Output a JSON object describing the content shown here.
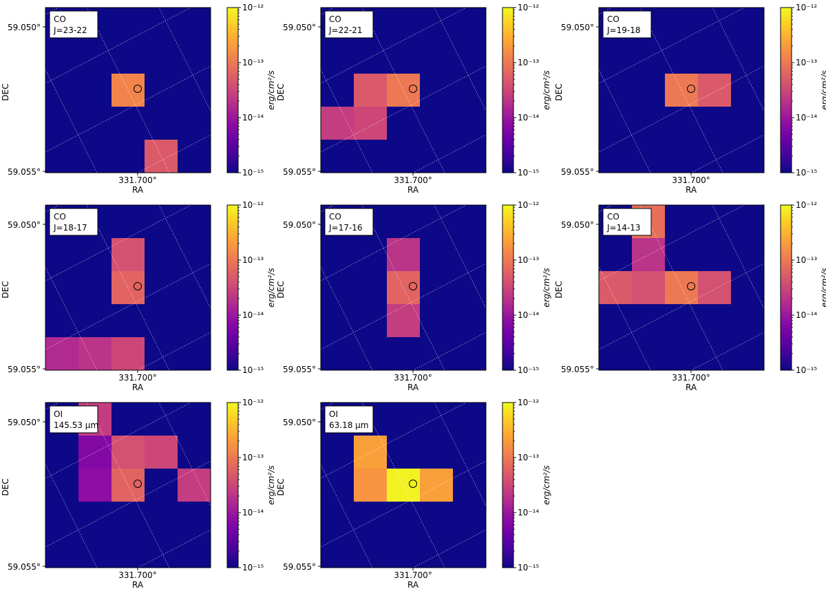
{
  "figure": {
    "colorbar_label": "erg/cm²/s",
    "colorbar_ticks": [
      "10⁻¹²",
      "10⁻¹³",
      "10⁻¹⁴",
      "10⁻¹⁵"
    ],
    "colormap": "plasma",
    "colors": {
      "background": "#0d0887",
      "marker": "#000000",
      "grid": "#ffffff"
    }
  },
  "chart_data": [
    {
      "type": "heatmap",
      "title_line1": "CO",
      "title_line2": "J=23-22",
      "xlabel": "RA",
      "ylabel": "DEC",
      "xtick": "331.700°",
      "yticks": [
        "59.050°",
        "59.055°"
      ],
      "clim_log10": [
        -15,
        -12
      ],
      "background_log10": -15,
      "cells": [
        {
          "col": 2,
          "row": 2,
          "log10_flux": -12.9
        },
        {
          "col": 3,
          "row": 4,
          "log10_flux": -13.3
        }
      ]
    },
    {
      "type": "heatmap",
      "title_line1": "CO",
      "title_line2": "J=22-21",
      "xlabel": "RA",
      "ylabel": "DEC",
      "xtick": "331.700°",
      "yticks": [
        "59.050°",
        "59.055°"
      ],
      "clim_log10": [
        -15,
        -12
      ],
      "background_log10": -15,
      "cells": [
        {
          "col": 1,
          "row": 2,
          "log10_flux": -13.3
        },
        {
          "col": 2,
          "row": 2,
          "log10_flux": -13.0
        },
        {
          "col": 0,
          "row": 3,
          "log10_flux": -13.6
        },
        {
          "col": 1,
          "row": 3,
          "log10_flux": -13.5
        }
      ]
    },
    {
      "type": "heatmap",
      "title_line1": "CO",
      "title_line2": "J=19-18",
      "xlabel": "RA",
      "ylabel": "DEC",
      "xtick": "331.700°",
      "yticks": [
        "59.050°",
        "59.055°"
      ],
      "clim_log10": [
        -15,
        -12
      ],
      "background_log10": -15,
      "cells": [
        {
          "col": 2,
          "row": 2,
          "log10_flux": -13.0
        },
        {
          "col": 3,
          "row": 2,
          "log10_flux": -13.3
        }
      ]
    },
    {
      "type": "heatmap",
      "title_line1": "CO",
      "title_line2": "J=18-17",
      "xlabel": "RA",
      "ylabel": "DEC",
      "xtick": "331.700°",
      "yticks": [
        "59.050°",
        "59.055°"
      ],
      "clim_log10": [
        -15,
        -12
      ],
      "background_log10": -15,
      "cells": [
        {
          "col": 2,
          "row": 1,
          "log10_flux": -13.4
        },
        {
          "col": 2,
          "row": 2,
          "log10_flux": -13.2
        },
        {
          "col": 0,
          "row": 4,
          "log10_flux": -13.8
        },
        {
          "col": 1,
          "row": 4,
          "log10_flux": -13.7
        },
        {
          "col": 2,
          "row": 4,
          "log10_flux": -13.5
        }
      ]
    },
    {
      "type": "heatmap",
      "title_line1": "CO",
      "title_line2": "J=17-16",
      "xlabel": "RA",
      "ylabel": "DEC",
      "xtick": "331.700°",
      "yticks": [
        "59.050°",
        "59.055°"
      ],
      "clim_log10": [
        -15,
        -12
      ],
      "background_log10": -15,
      "cells": [
        {
          "col": 2,
          "row": 1,
          "log10_flux": -13.7
        },
        {
          "col": 2,
          "row": 2,
          "log10_flux": -13.2
        },
        {
          "col": 2,
          "row": 3,
          "log10_flux": -13.6
        }
      ]
    },
    {
      "type": "heatmap",
      "title_line1": "CO",
      "title_line2": "J=14-13",
      "xlabel": "RA",
      "ylabel": "DEC",
      "xtick": "331.700°",
      "yticks": [
        "59.050°",
        "59.055°"
      ],
      "clim_log10": [
        -15,
        -12
      ],
      "background_log10": -15,
      "cells": [
        {
          "col": 1,
          "row": 0,
          "log10_flux": -13.1
        },
        {
          "col": 1,
          "row": 1,
          "log10_flux": -13.7
        },
        {
          "col": 0,
          "row": 2,
          "log10_flux": -13.3
        },
        {
          "col": 1,
          "row": 2,
          "log10_flux": -13.4
        },
        {
          "col": 2,
          "row": 2,
          "log10_flux": -13.0
        },
        {
          "col": 3,
          "row": 2,
          "log10_flux": -13.4
        }
      ]
    },
    {
      "type": "heatmap",
      "title_line1": "OI",
      "title_line2": "145.53 μm",
      "xlabel": "RA",
      "ylabel": "DEC",
      "xtick": "331.700°",
      "yticks": [
        "59.050°",
        "59.055°"
      ],
      "clim_log10": [
        -15,
        -12
      ],
      "background_log10": -15,
      "cells": [
        {
          "col": 1,
          "row": 0,
          "log10_flux": -13.6
        },
        {
          "col": 1,
          "row": 1,
          "log10_flux": -14.2
        },
        {
          "col": 2,
          "row": 1,
          "log10_flux": -13.4
        },
        {
          "col": 3,
          "row": 1,
          "log10_flux": -13.5
        },
        {
          "col": 1,
          "row": 2,
          "log10_flux": -14.1
        },
        {
          "col": 2,
          "row": 2,
          "log10_flux": -13.2
        },
        {
          "col": 4,
          "row": 2,
          "log10_flux": -13.6
        }
      ]
    },
    {
      "type": "heatmap",
      "title_line1": "OI",
      "title_line2": "63.18 μm",
      "xlabel": "RA",
      "ylabel": "DEC",
      "xtick": "331.700°",
      "yticks": [
        "59.050°",
        "59.055°"
      ],
      "clim_log10": [
        -15,
        -12
      ],
      "background_log10": -15,
      "cells": [
        {
          "col": 1,
          "row": 1,
          "log10_flux": -12.65
        },
        {
          "col": 1,
          "row": 2,
          "log10_flux": -12.75
        },
        {
          "col": 2,
          "row": 2,
          "log10_flux": -12.05
        },
        {
          "col": 3,
          "row": 2,
          "log10_flux": -12.65
        }
      ]
    }
  ]
}
